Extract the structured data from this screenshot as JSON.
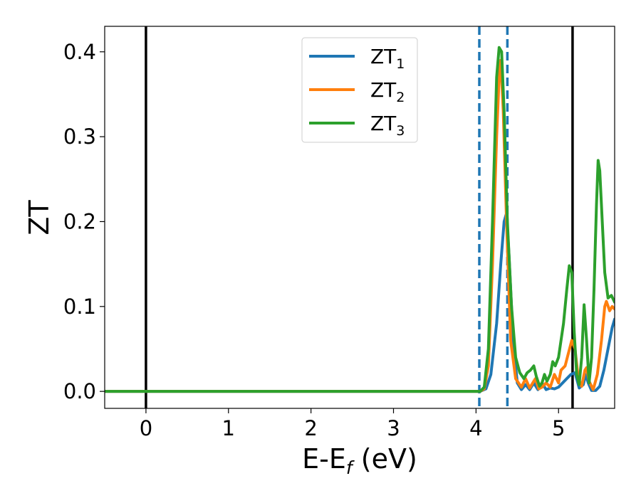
{
  "chart_data": {
    "type": "line",
    "xlabel": {
      "main": "E-E",
      "sub": "f",
      "suffix": " (eV)"
    },
    "ylabel": "ZT",
    "xlim": [
      -0.5,
      5.68
    ],
    "ylim": [
      -0.02,
      0.43
    ],
    "xticks": [
      0,
      1,
      2,
      3,
      4,
      5
    ],
    "yticks": [
      0.0,
      0.1,
      0.2,
      0.3,
      0.4
    ],
    "ytick_labels": [
      "0.0",
      "0.1",
      "0.2",
      "0.3",
      "0.4"
    ],
    "grid": false,
    "legend_position": "top-center",
    "vertical_lines": [
      {
        "x": 0.0,
        "style": "solid",
        "color": "#000000"
      },
      {
        "x": 4.04,
        "style": "dashed",
        "color": "#1f77b4"
      },
      {
        "x": 4.38,
        "style": "dashed",
        "color": "#1f77b4"
      },
      {
        "x": 5.17,
        "style": "solid",
        "color": "#000000"
      }
    ],
    "series": [
      {
        "name": "ZT",
        "sub": "1",
        "color": "#1f77b4",
        "points": [
          [
            -0.5,
            0
          ],
          [
            4.05,
            0
          ],
          [
            4.12,
            0.003
          ],
          [
            4.18,
            0.02
          ],
          [
            4.25,
            0.08
          ],
          [
            4.3,
            0.15
          ],
          [
            4.34,
            0.2
          ],
          [
            4.37,
            0.21
          ],
          [
            4.4,
            0.16
          ],
          [
            4.45,
            0.06
          ],
          [
            4.5,
            0.01
          ],
          [
            4.55,
            0.002
          ],
          [
            4.6,
            0.008
          ],
          [
            4.65,
            0.002
          ],
          [
            4.7,
            0.01
          ],
          [
            4.75,
            0.002
          ],
          [
            4.8,
            0.01
          ],
          [
            4.85,
            0.002
          ],
          [
            4.9,
            0.004
          ],
          [
            4.95,
            0.003
          ],
          [
            5.0,
            0.005
          ],
          [
            5.05,
            0.01
          ],
          [
            5.1,
            0.015
          ],
          [
            5.15,
            0.02
          ],
          [
            5.2,
            0.022
          ],
          [
            5.25,
            0.004
          ],
          [
            5.3,
            0.008
          ],
          [
            5.33,
            0.02
          ],
          [
            5.36,
            0.01
          ],
          [
            5.4,
            0.001
          ],
          [
            5.45,
            0.001
          ],
          [
            5.5,
            0.006
          ],
          [
            5.55,
            0.025
          ],
          [
            5.6,
            0.05
          ],
          [
            5.65,
            0.075
          ],
          [
            5.68,
            0.085
          ]
        ]
      },
      {
        "name": "ZT",
        "sub": "2",
        "color": "#ff7f0e",
        "points": [
          [
            -0.5,
            0
          ],
          [
            4.05,
            0
          ],
          [
            4.1,
            0.003
          ],
          [
            4.15,
            0.03
          ],
          [
            4.2,
            0.15
          ],
          [
            4.25,
            0.3
          ],
          [
            4.28,
            0.37
          ],
          [
            4.3,
            0.39
          ],
          [
            4.33,
            0.33
          ],
          [
            4.37,
            0.2
          ],
          [
            4.42,
            0.06
          ],
          [
            4.48,
            0.015
          ],
          [
            4.55,
            0.005
          ],
          [
            4.6,
            0.015
          ],
          [
            4.65,
            0.004
          ],
          [
            4.7,
            0.012
          ],
          [
            4.72,
            0.015
          ],
          [
            4.76,
            0.003
          ],
          [
            4.8,
            0.005
          ],
          [
            4.85,
            0.01
          ],
          [
            4.9,
            0.005
          ],
          [
            4.95,
            0.02
          ],
          [
            5.0,
            0.01
          ],
          [
            5.03,
            0.025
          ],
          [
            5.08,
            0.03
          ],
          [
            5.12,
            0.045
          ],
          [
            5.16,
            0.06
          ],
          [
            5.2,
            0.05
          ],
          [
            5.24,
            0.015
          ],
          [
            5.28,
            0.006
          ],
          [
            5.32,
            0.025
          ],
          [
            5.34,
            0.028
          ],
          [
            5.37,
            0.012
          ],
          [
            5.42,
            0.002
          ],
          [
            5.47,
            0.02
          ],
          [
            5.52,
            0.06
          ],
          [
            5.56,
            0.1
          ],
          [
            5.58,
            0.106
          ],
          [
            5.62,
            0.095
          ],
          [
            5.65,
            0.1
          ],
          [
            5.68,
            0.097
          ]
        ]
      },
      {
        "name": "ZT",
        "sub": "3",
        "color": "#2ca02c",
        "points": [
          [
            -0.5,
            0
          ],
          [
            4.05,
            0
          ],
          [
            4.1,
            0.005
          ],
          [
            4.15,
            0.05
          ],
          [
            4.2,
            0.2
          ],
          [
            4.25,
            0.37
          ],
          [
            4.28,
            0.405
          ],
          [
            4.31,
            0.4
          ],
          [
            4.34,
            0.33
          ],
          [
            4.38,
            0.2
          ],
          [
            4.43,
            0.1
          ],
          [
            4.48,
            0.04
          ],
          [
            4.53,
            0.022
          ],
          [
            4.58,
            0.015
          ],
          [
            4.62,
            0.022
          ],
          [
            4.66,
            0.025
          ],
          [
            4.7,
            0.03
          ],
          [
            4.73,
            0.018
          ],
          [
            4.77,
            0.006
          ],
          [
            4.8,
            0.01
          ],
          [
            4.83,
            0.02
          ],
          [
            4.86,
            0.012
          ],
          [
            4.9,
            0.02
          ],
          [
            4.93,
            0.035
          ],
          [
            4.96,
            0.03
          ],
          [
            5.0,
            0.04
          ],
          [
            5.03,
            0.06
          ],
          [
            5.06,
            0.08
          ],
          [
            5.1,
            0.12
          ],
          [
            5.13,
            0.148
          ],
          [
            5.16,
            0.14
          ],
          [
            5.19,
            0.07
          ],
          [
            5.22,
            0.02
          ],
          [
            5.25,
            0.008
          ],
          [
            5.28,
            0.04
          ],
          [
            5.31,
            0.102
          ],
          [
            5.34,
            0.06
          ],
          [
            5.37,
            0.01
          ],
          [
            5.4,
            0.04
          ],
          [
            5.43,
            0.12
          ],
          [
            5.46,
            0.22
          ],
          [
            5.48,
            0.272
          ],
          [
            5.5,
            0.26
          ],
          [
            5.53,
            0.2
          ],
          [
            5.56,
            0.14
          ],
          [
            5.6,
            0.11
          ],
          [
            5.64,
            0.113
          ],
          [
            5.68,
            0.105
          ]
        ]
      }
    ]
  }
}
